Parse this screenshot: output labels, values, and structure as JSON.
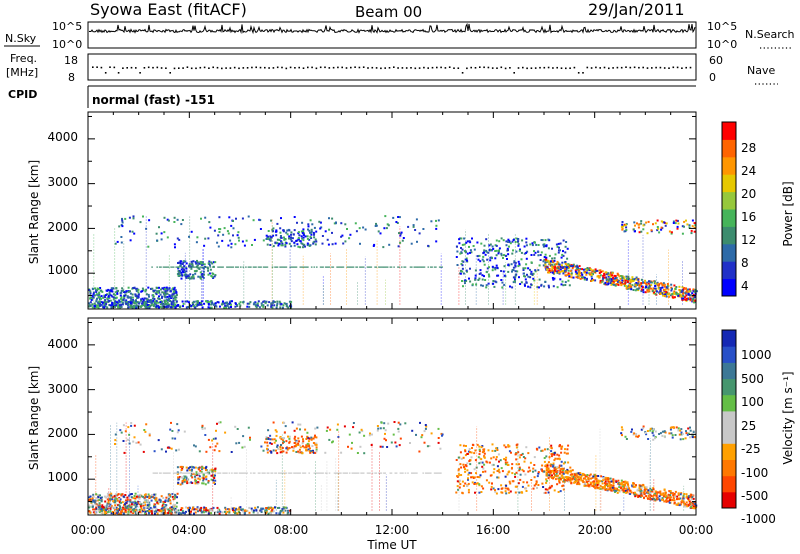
{
  "header": {
    "title": "Syowa East (fitACF)",
    "beam": "Beam 00",
    "date": "29/Jan/2011"
  },
  "noise_panel": {
    "left_label": "N.Sky",
    "right_label": "N.Search",
    "left_ticks": [
      "10^5",
      "10^0"
    ],
    "right_ticks": [
      "10^5",
      "10^0"
    ]
  },
  "freq_panel": {
    "left_label_1": "Freq.",
    "left_label_2": "[MHz]",
    "right_label": "Nave",
    "left_ticks": [
      "18",
      "8"
    ],
    "right_ticks": [
      "60",
      "0"
    ]
  },
  "cpid": {
    "label": "CPID",
    "value": "normal (fast) -151"
  },
  "colors": {
    "power_scale": [
      "#0000ff",
      "#2030c8",
      "#2d6aa8",
      "#3c8c6e",
      "#46b45a",
      "#96c83c",
      "#e6c800",
      "#ff9600",
      "#ff6400",
      "#ff0000"
    ],
    "velocity_scale": [
      "#1428b4",
      "#2850c8",
      "#3c7896",
      "#46966e",
      "#64be46",
      "#c8c8c8",
      "#c8c8c8",
      "#ffa000",
      "#ff7800",
      "#ff4600",
      "#e60000"
    ]
  },
  "chart_data": [
    {
      "type": "heatmap",
      "name": "power",
      "ylabel": "Slant Range [km]",
      "yticks": [
        1000,
        2000,
        3000,
        4000
      ],
      "ylim": [
        200,
        4600
      ],
      "xticks": [
        "00:00",
        "04:00",
        "08:00",
        "12:00",
        "16:00",
        "20:00",
        "00:00"
      ],
      "xlim_hours": [
        0,
        24
      ],
      "colorbar_label": "Power [dB]",
      "colorbar_ticks": [
        "28",
        "24",
        "20",
        "16",
        "12",
        "8",
        "4"
      ],
      "colorbar_range": [
        0,
        30
      ]
    },
    {
      "type": "heatmap",
      "name": "velocity",
      "ylabel": "Slant Range [km]",
      "yticks": [
        1000,
        2000,
        3000,
        4000
      ],
      "ylim": [
        200,
        4600
      ],
      "xticks": [
        "00:00",
        "04:00",
        "08:00",
        "12:00",
        "16:00",
        "20:00",
        "00:00"
      ],
      "xlabel": "Time UT",
      "colorbar_label": "Velocity [m s⁻¹]",
      "colorbar_ticks": [
        "1000",
        "500",
        "100",
        "25",
        "-25",
        "-100",
        "-500",
        "-1000"
      ]
    }
  ]
}
